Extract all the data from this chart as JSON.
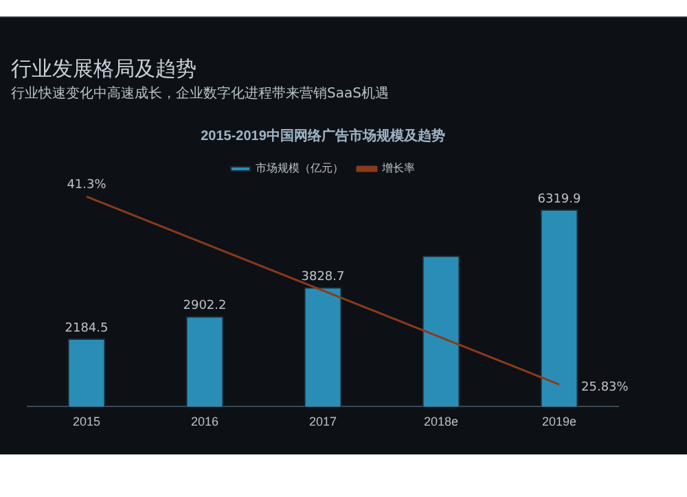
{
  "chart_data": {
    "type": "bar",
    "title": "2015-2019中国网络广告市场规模及趋势",
    "annotations": [
      "行业发展格局及趋势",
      "行业快速变化中高速成长，企业数字化进程带来营销SaaS机遇"
    ],
    "categories": [
      "2015",
      "2016",
      "2017",
      "2018e",
      "2019e"
    ],
    "series": [
      {
        "name": "市场规模（亿元）",
        "color": "#2a8db5",
        "values": [
          2184.5,
          2902.2,
          3828.7,
          4840,
          6319.9
        ],
        "value_labels": [
          "2184.5",
          "2902.2",
          "3828.7",
          null,
          "6319.9"
        ]
      },
      {
        "name": "增长率",
        "type": "line",
        "axis": "y2",
        "color": "#8b3a1a",
        "values": [
          41.3,
          null,
          null,
          null,
          25.83
        ],
        "value_labels": [
          "41.3%",
          null,
          null,
          null,
          "25.83%"
        ]
      }
    ],
    "legend": "top",
    "marker": "none"
  }
}
